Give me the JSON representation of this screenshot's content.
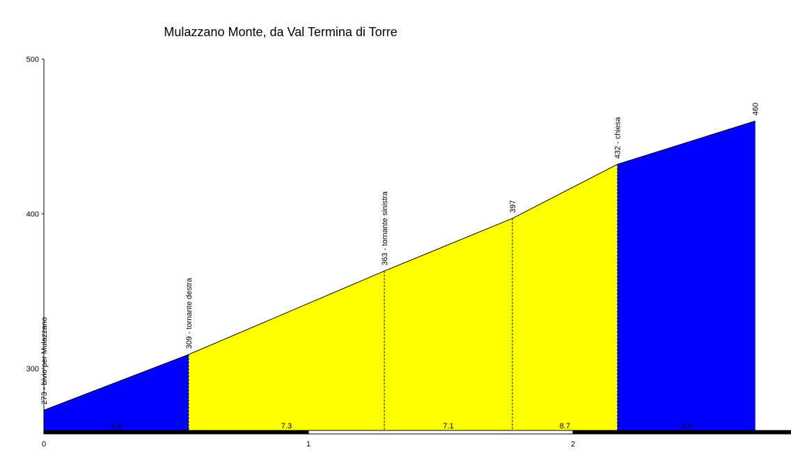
{
  "chart_data": {
    "type": "area",
    "title": "Mulazzano Monte, da Val Termina di Torre",
    "x": [
      0,
      0.547,
      1.287,
      1.771,
      2.168,
      2.689
    ],
    "values": [
      273,
      309,
      363,
      397,
      432,
      460
    ],
    "value_labels": [
      "273 - bivio per Mulazzano",
      "309 - tornante destra",
      "363 - tornante sinistra",
      "397",
      "432 - chiesa",
      "460"
    ],
    "segments": {
      "values": [
        6.6,
        7.3,
        7.1,
        8.7,
        5.4
      ],
      "colors": [
        "#0000ff",
        "#ffff00",
        "#ffff00",
        "#ffff00",
        "#0000ff"
      ]
    },
    "xlim": [
      0,
      2.824
    ],
    "xticks": [
      0,
      1,
      2
    ],
    "ylim": [
      259,
      500
    ],
    "yticks": [
      300,
      400,
      500
    ]
  }
}
